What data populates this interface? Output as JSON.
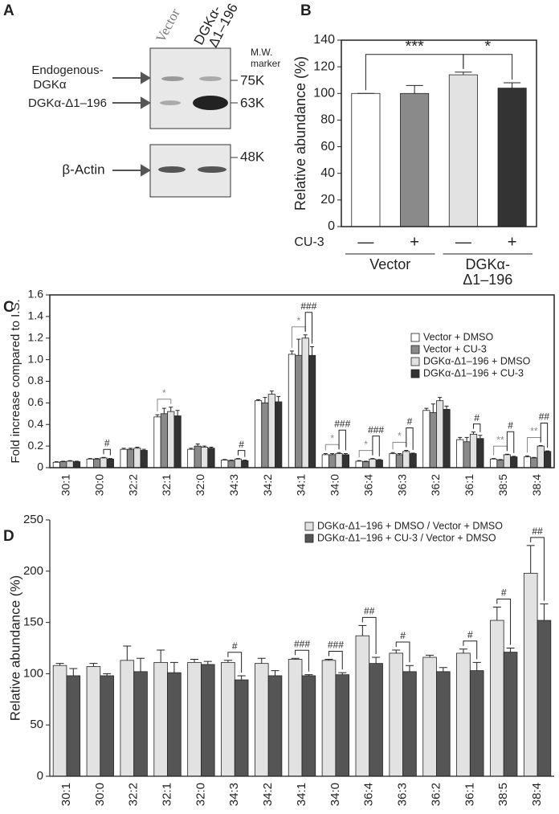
{
  "blot": {
    "panel": "A",
    "lanes": [
      [
        "Vector"
      ],
      [
        "DGKα-",
        "Δ1–196"
      ]
    ],
    "marker_header": [
      "M.W.",
      "marker"
    ],
    "bands": [
      [
        "Endogenous-",
        "DGKα"
      ],
      [
        "DGKα-Δ1–196"
      ],
      [
        "β-Actin"
      ]
    ],
    "markers": [
      "75K",
      "63K",
      "48K"
    ]
  },
  "chart_data": [
    {
      "type": "bar",
      "panel": "B",
      "ylabel": "Relative abundance (%)",
      "categories": [
        "—",
        "+",
        "—",
        "+"
      ],
      "values": [
        100,
        100,
        114,
        104
      ],
      "errors": [
        0,
        6,
        2,
        4
      ],
      "colors": [
        "#ffffff",
        "#8a8a8a",
        "#e2e2e2",
        "#333333"
      ],
      "x_row_label": "CU-3",
      "groups": [
        {
          "name": [
            "Vector"
          ],
          "span": [
            0,
            1
          ]
        },
        {
          "name": [
            "DGKα-",
            "Δ1–196"
          ],
          "span": [
            2,
            3
          ]
        }
      ],
      "ylim": [
        0,
        140
      ],
      "yticks": [
        0,
        20,
        40,
        60,
        80,
        100,
        120,
        140
      ],
      "frame": true,
      "annotations": [
        {
          "bars": [
            0,
            2
          ],
          "text": "***"
        },
        {
          "bars": [
            2,
            3
          ],
          "text": "*"
        }
      ]
    },
    {
      "type": "bar",
      "panel": "C",
      "ylabel": "Fold increase compared to I.S.",
      "categories": [
        "30:1",
        "30:0",
        "32:2",
        "32:1",
        "32:0",
        "34:3",
        "34:2",
        "34:1",
        "34:0",
        "36:4",
        "36:3",
        "36:2",
        "36:1",
        "38:5",
        "38:4"
      ],
      "series": [
        {
          "name": "Vector + DMSO",
          "color": "#ffffff",
          "values": [
            0.05,
            0.08,
            0.17,
            0.47,
            0.17,
            0.07,
            0.62,
            1.05,
            0.12,
            0.06,
            0.13,
            0.53,
            0.26,
            0.08,
            0.1
          ],
          "errors": [
            0.005,
            0.005,
            0.01,
            0.02,
            0.01,
            0.005,
            0.01,
            0.03,
            0.01,
            0.005,
            0.01,
            0.02,
            0.02,
            0.005,
            0.01
          ]
        },
        {
          "name": "Vector + CU-3",
          "color": "#8a8a8a",
          "values": [
            0.055,
            0.08,
            0.17,
            0.5,
            0.2,
            0.065,
            0.6,
            1.04,
            0.12,
            0.055,
            0.12,
            0.51,
            0.24,
            0.07,
            0.09
          ],
          "errors": [
            0.005,
            0.005,
            0.01,
            0.05,
            0.02,
            0.005,
            0.05,
            0.15,
            0.01,
            0.005,
            0.01,
            0.08,
            0.04,
            0.005,
            0.005
          ]
        },
        {
          "name": "DGKα-Δ1–196 + DMSO",
          "color": "#e2e2e2",
          "values": [
            0.06,
            0.09,
            0.18,
            0.52,
            0.19,
            0.08,
            0.68,
            1.2,
            0.13,
            0.08,
            0.15,
            0.62,
            0.31,
            0.12,
            0.2
          ],
          "errors": [
            0.005,
            0.005,
            0.01,
            0.04,
            0.01,
            0.005,
            0.03,
            0.03,
            0.01,
            0.005,
            0.01,
            0.03,
            0.02,
            0.005,
            0.005
          ]
        },
        {
          "name": "DGKα-Δ1–196 + CU-3",
          "color": "#333333",
          "values": [
            0.055,
            0.08,
            0.16,
            0.48,
            0.18,
            0.065,
            0.61,
            1.04,
            0.12,
            0.07,
            0.13,
            0.54,
            0.27,
            0.1,
            0.15
          ],
          "errors": [
            0.005,
            0.005,
            0.01,
            0.05,
            0.01,
            0.005,
            0.05,
            0.08,
            0.01,
            0.005,
            0.005,
            0.03,
            0.03,
            0.005,
            0.005
          ]
        }
      ],
      "ylim": [
        0,
        1.6
      ],
      "yticks": [
        0,
        0.2,
        0.4,
        0.6,
        0.8,
        {
          "value": 1,
          "label": "1.0"
        },
        1.2,
        1.4,
        1.6
      ],
      "frame": true,
      "legend": "upper right",
      "annotations": [
        {
          "category": 1,
          "series": [
            2,
            3
          ],
          "text": "#"
        },
        {
          "category": 3,
          "series": [
            0,
            2
          ],
          "text": "*",
          "color": "#888888"
        },
        {
          "category": 5,
          "series": [
            2,
            3
          ],
          "text": "#"
        },
        {
          "category": 7,
          "series": [
            0,
            2
          ],
          "text": "*",
          "color": "#888888"
        },
        {
          "category": 7,
          "series": [
            2,
            3
          ],
          "text": "###"
        },
        {
          "category": 8,
          "series": [
            0,
            2
          ],
          "text": "*",
          "color": "#888888"
        },
        {
          "category": 8,
          "series": [
            2,
            3
          ],
          "text": "###"
        },
        {
          "category": 9,
          "series": [
            0,
            2
          ],
          "text": "*",
          "color": "#888888"
        },
        {
          "category": 9,
          "series": [
            2,
            3
          ],
          "text": "###"
        },
        {
          "category": 10,
          "series": [
            0,
            2
          ],
          "text": "*",
          "color": "#888888"
        },
        {
          "category": 10,
          "series": [
            2,
            3
          ],
          "text": "#"
        },
        {
          "category": 12,
          "series": [
            2,
            3
          ],
          "text": "#"
        },
        {
          "category": 13,
          "series": [
            0,
            2
          ],
          "text": "**",
          "color": "#888888"
        },
        {
          "category": 13,
          "series": [
            2,
            3
          ],
          "text": "#"
        },
        {
          "category": 14,
          "series": [
            0,
            2
          ],
          "text": "**",
          "color": "#888888"
        },
        {
          "category": 14,
          "series": [
            2,
            3
          ],
          "text": "##"
        }
      ]
    },
    {
      "type": "bar",
      "panel": "D",
      "ylabel": "Relative abundance (%)",
      "categories": [
        "30:1",
        "30:0",
        "32:2",
        "32:1",
        "32:0",
        "34:3",
        "34:2",
        "34:1",
        "34:0",
        "36:4",
        "36:3",
        "36:2",
        "36:1",
        "38:5",
        "38:4"
      ],
      "series": [
        {
          "name": "DGKα-Δ1–196 + DMSO / Vector + DMSO",
          "color": "#e2e2e2",
          "values": [
            108,
            107,
            113,
            111,
            111,
            111,
            110,
            114,
            113,
            137,
            120,
            116,
            120,
            152,
            198
          ],
          "errors": [
            2,
            3,
            14,
            12,
            3,
            2,
            5,
            1,
            1,
            10,
            3,
            2,
            4,
            13,
            27
          ]
        },
        {
          "name": "DGKα-Δ1–196 + CU-3 / Vector + DMSO",
          "color": "#555555",
          "values": [
            98,
            98,
            102,
            101,
            109,
            94,
            98,
            98,
            99,
            110,
            102,
            102,
            103,
            121,
            152
          ],
          "errors": [
            7,
            2,
            13,
            10,
            3,
            4,
            5,
            1,
            2,
            6,
            6,
            4,
            8,
            4,
            16
          ]
        }
      ],
      "ylim": [
        0,
        250
      ],
      "yticks": [
        0,
        50,
        100,
        150,
        200,
        250
      ],
      "frame": false,
      "legend": "upper right",
      "annotations": [
        {
          "category": 5,
          "series": [
            0,
            1
          ],
          "text": "#"
        },
        {
          "category": 7,
          "series": [
            0,
            1
          ],
          "text": "###"
        },
        {
          "category": 8,
          "series": [
            0,
            1
          ],
          "text": "###"
        },
        {
          "category": 9,
          "series": [
            0,
            1
          ],
          "text": "##"
        },
        {
          "category": 10,
          "series": [
            0,
            1
          ],
          "text": "#"
        },
        {
          "category": 12,
          "series": [
            0,
            1
          ],
          "text": "#"
        },
        {
          "category": 13,
          "series": [
            0,
            1
          ],
          "text": "#"
        },
        {
          "category": 14,
          "series": [
            0,
            1
          ],
          "text": "##"
        }
      ]
    }
  ]
}
